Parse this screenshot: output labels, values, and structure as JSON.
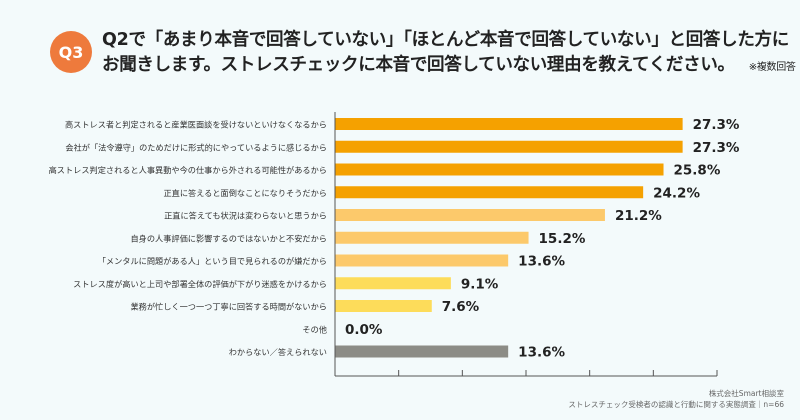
{
  "header": {
    "badge": "Q3",
    "question_line1": "Q2で「あまり本音で回答していない」「ほとんど本音で回答していない」と回答した方に",
    "question_line2": "お聞きします。ストレスチェックに本音で回答していない理由を教えてください。",
    "note": "※複数回答"
  },
  "chart_data": {
    "type": "bar",
    "orientation": "horizontal",
    "categories": [
      "高ストレス者と判定されると産業医面談を受けないといけなくなるから",
      "会社が「法令遵守」のためだけに形式的にやっているように感じるから",
      "高ストレス判定されると人事異動や今の仕事から外される可能性があるから",
      "正直に答えると面倒なことになりそうだから",
      "正直に答えても状況は変わらないと思うから",
      "自身の人事評価に影響するのではないかと不安だから",
      "「メンタルに問題がある人」という目で見られるのが嫌だから",
      "ストレス度が高いと上司や部署全体の評価が下がり迷惑をかけるから",
      "業務が忙しく一つ一つ丁寧に回答する時間がないから",
      "その他",
      "わからない／答えられない"
    ],
    "values": [
      27.3,
      27.3,
      25.8,
      24.2,
      21.2,
      15.2,
      13.6,
      9.1,
      7.6,
      0.0,
      13.6
    ],
    "value_labels": [
      "27.3%",
      "27.3%",
      "25.8%",
      "24.2%",
      "21.2%",
      "15.2%",
      "13.6%",
      "9.1%",
      "7.6%",
      "0.0%",
      "13.6%"
    ],
    "colors": [
      "#f5a100",
      "#f5a100",
      "#f5a100",
      "#f5a100",
      "#fcc96b",
      "#fcc96b",
      "#fcc96b",
      "#fddc5a",
      "#fddc5a",
      "#fddc5a",
      "#8c8c86"
    ],
    "xlim": [
      0,
      30
    ],
    "xticks": [
      0,
      5,
      10,
      15,
      20,
      25,
      30
    ],
    "grid": false
  },
  "footer": {
    "company": "株式会社Smart相談室",
    "source": "ストレスチェック受検者の認識と行動に関する実態調査｜n=66"
  }
}
